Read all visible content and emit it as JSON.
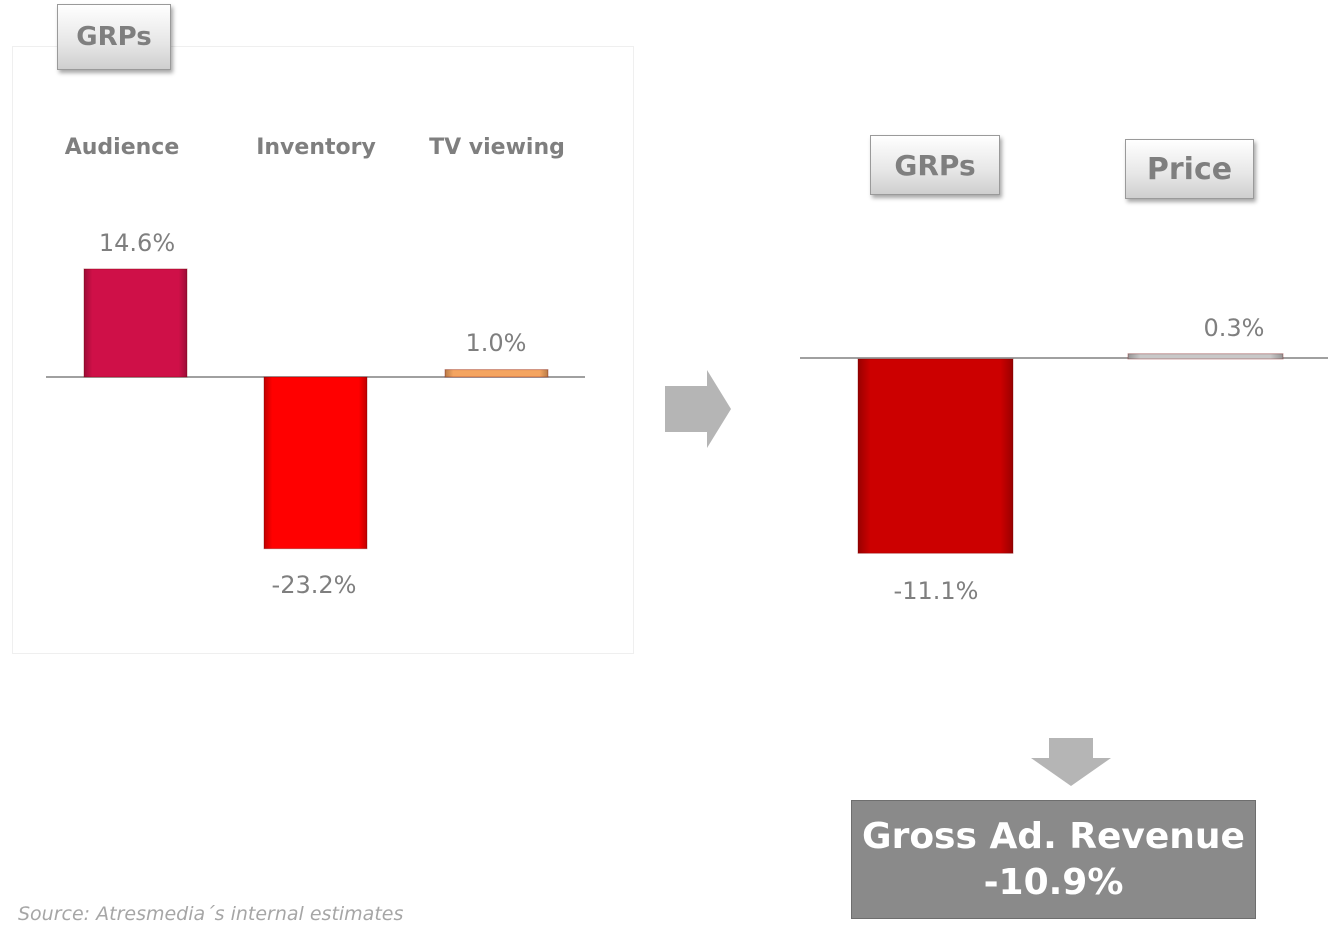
{
  "left_chart": {
    "badge": "GRPs",
    "chart_data": {
      "type": "bar",
      "categories": [
        "Audience",
        "Inventory",
        "TV viewing"
      ],
      "values": [
        14.6,
        -23.2,
        1.0
      ],
      "value_labels": [
        "14.6%",
        "-23.2%",
        "1.0%"
      ],
      "colors": [
        "#cf1048",
        "#ff0000",
        "#f4a460"
      ]
    }
  },
  "right_chart": {
    "badges": [
      "GRPs",
      "Price"
    ],
    "chart_data": {
      "type": "bar",
      "categories": [
        "GRPs",
        "Price"
      ],
      "values": [
        -11.1,
        0.3
      ],
      "value_labels": [
        "-11.1%",
        "0.3%"
      ],
      "colors": [
        "#cc0000",
        "#c8c8c8"
      ]
    }
  },
  "result": {
    "title": "Gross Ad. Revenue",
    "value": "-10.9%"
  },
  "source": "Source: Atresmedia´s internal estimates"
}
